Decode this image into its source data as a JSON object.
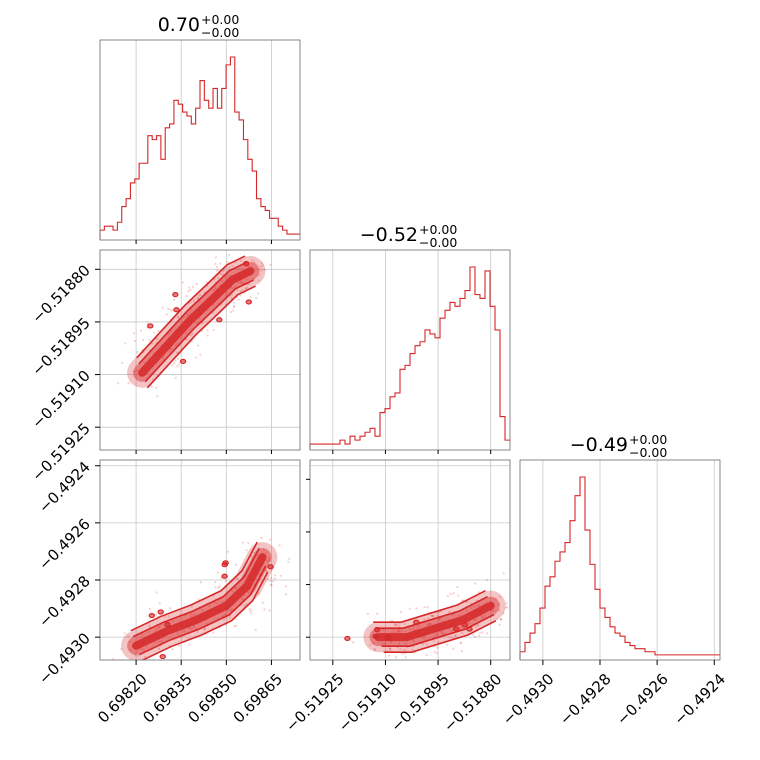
{
  "chart_data": {
    "type": "corner",
    "color": "#d62728",
    "grid": true,
    "parameters": [
      {
        "title_value": "0.70",
        "plus": "+0.00",
        "minus": "−0.00",
        "range": [
          0.69808,
          0.698745
        ],
        "ticks": [
          0.6982,
          0.69835,
          0.6985,
          0.69865
        ],
        "tick_labels": [
          "0.69820",
          "0.69835",
          "0.69850",
          "0.69865"
        ]
      },
      {
        "title_value": "−0.52",
        "plus": "+0.00",
        "minus": "−0.00",
        "range": [
          -0.519315,
          -0.518745
        ],
        "ticks": [
          -0.51925,
          -0.5191,
          -0.51895,
          -0.5188
        ],
        "tick_labels": [
          "−0.51925",
          "−0.51910",
          "−0.51895",
          "−0.51880"
        ]
      },
      {
        "title_value": "−0.49",
        "plus": "+0.00",
        "minus": "−0.00",
        "range": [
          -0.49308,
          -0.49238
        ],
        "ticks": [
          -0.493,
          -0.4928,
          -0.4926,
          -0.4924
        ],
        "tick_labels": [
          "−0.4930",
          "−0.4928",
          "−0.4926",
          "−0.4924"
        ]
      }
    ],
    "histograms": [
      [
        2,
        3,
        3,
        2,
        4,
        8,
        10,
        14,
        15,
        19,
        19,
        26,
        25,
        26,
        20,
        28,
        29,
        35,
        34,
        32,
        31,
        29,
        33,
        40,
        35,
        33,
        38,
        33,
        38,
        44,
        46,
        32,
        30,
        25,
        20,
        17,
        10,
        8,
        7,
        5,
        5,
        3,
        2,
        1,
        1,
        1
      ],
      [
        1,
        1,
        1,
        1,
        1,
        1,
        2,
        1,
        3,
        2,
        3,
        4,
        5,
        3,
        9,
        10,
        13,
        14,
        20,
        21,
        24,
        26,
        27,
        30,
        29,
        28,
        33,
        35,
        37,
        36,
        38,
        40,
        46,
        39,
        38,
        45,
        36,
        30,
        8,
        2
      ],
      [
        2,
        5,
        8,
        11,
        16,
        23,
        26,
        31,
        34,
        37,
        44,
        52,
        58,
        41,
        30,
        22,
        16,
        13,
        10,
        8,
        7,
        5,
        4,
        3,
        3,
        2,
        2,
        1,
        1,
        1,
        1,
        1,
        1,
        1,
        1,
        1,
        1,
        1,
        1,
        1
      ]
    ],
    "pairs": [
      {
        "x_param": 0,
        "y_param": 1,
        "ridge": [
          [
            0.69822,
            -0.519095
          ],
          [
            0.6983,
            -0.51902
          ],
          [
            0.69838,
            -0.518945
          ],
          [
            0.69846,
            -0.51888
          ],
          [
            0.69852,
            -0.51883
          ],
          [
            0.69858,
            -0.518805
          ]
        ]
      },
      {
        "x_param": 0,
        "y_param": 2,
        "ridge": [
          [
            0.6982,
            -0.49303
          ],
          [
            0.6983,
            -0.49298
          ],
          [
            0.6984,
            -0.49294
          ],
          [
            0.6985,
            -0.49289
          ],
          [
            0.69857,
            -0.49282
          ],
          [
            0.69862,
            -0.49272
          ]
        ]
      },
      {
        "x_param": 1,
        "y_param": 2,
        "ridge": [
          [
            -0.51912,
            -0.493
          ],
          [
            -0.51904,
            -0.493
          ],
          [
            -0.51896,
            -0.49297
          ],
          [
            -0.51888,
            -0.49294
          ],
          [
            -0.5188,
            -0.49289
          ]
        ]
      }
    ]
  }
}
